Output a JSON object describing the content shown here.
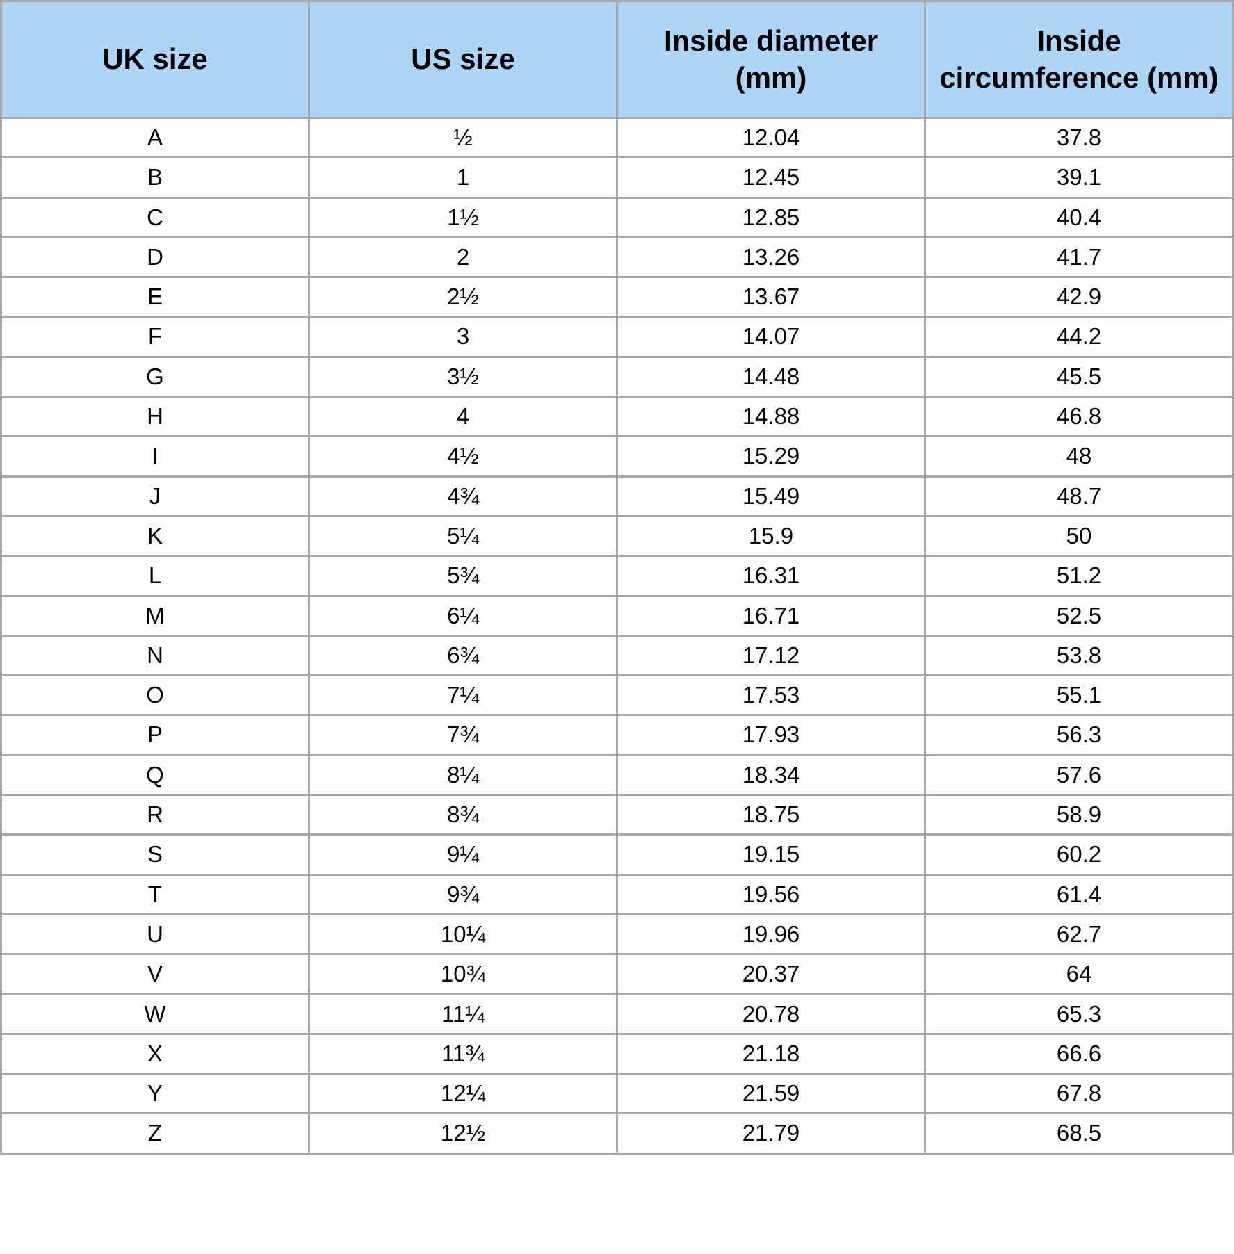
{
  "table": {
    "header_bg": "#aed5f6",
    "border_color": "#a8a8a8",
    "text_color": "#000000",
    "header_fontsize": 42,
    "cell_fontsize": 33,
    "columns": [
      "UK size",
      "US size",
      "Inside diameter (mm)",
      "Inside circumference (mm)"
    ],
    "rows": [
      [
        "A",
        "½",
        "12.04",
        "37.8"
      ],
      [
        "B",
        "1",
        "12.45",
        "39.1"
      ],
      [
        "C",
        "1½",
        "12.85",
        "40.4"
      ],
      [
        "D",
        "2",
        "13.26",
        "41.7"
      ],
      [
        "E",
        "2½",
        "13.67",
        "42.9"
      ],
      [
        "F",
        "3",
        "14.07",
        "44.2"
      ],
      [
        "G",
        "3½",
        "14.48",
        "45.5"
      ],
      [
        "H",
        "4",
        "14.88",
        "46.8"
      ],
      [
        "I",
        "4½",
        "15.29",
        "48"
      ],
      [
        "J",
        "4¾",
        "15.49",
        "48.7"
      ],
      [
        "K",
        "5¼",
        "15.9",
        "50"
      ],
      [
        "L",
        "5¾",
        "16.31",
        "51.2"
      ],
      [
        "M",
        "6¼",
        "16.71",
        "52.5"
      ],
      [
        "N",
        "6¾",
        "17.12",
        "53.8"
      ],
      [
        "O",
        "7¼",
        "17.53",
        "55.1"
      ],
      [
        "P",
        "7¾",
        "17.93",
        "56.3"
      ],
      [
        "Q",
        "8¼",
        "18.34",
        "57.6"
      ],
      [
        "R",
        "8¾",
        "18.75",
        "58.9"
      ],
      [
        "S",
        "9¼",
        "19.15",
        "60.2"
      ],
      [
        "T",
        "9¾",
        "19.56",
        "61.4"
      ],
      [
        "U",
        "10¼",
        "19.96",
        "62.7"
      ],
      [
        "V",
        "10¾",
        "20.37",
        "64"
      ],
      [
        "W",
        "11¼",
        "20.78",
        "65.3"
      ],
      [
        "X",
        "11¾",
        "21.18",
        "66.6"
      ],
      [
        "Y",
        "12¼",
        "21.59",
        "67.8"
      ],
      [
        "Z",
        "12½",
        "21.79",
        "68.5"
      ]
    ]
  }
}
